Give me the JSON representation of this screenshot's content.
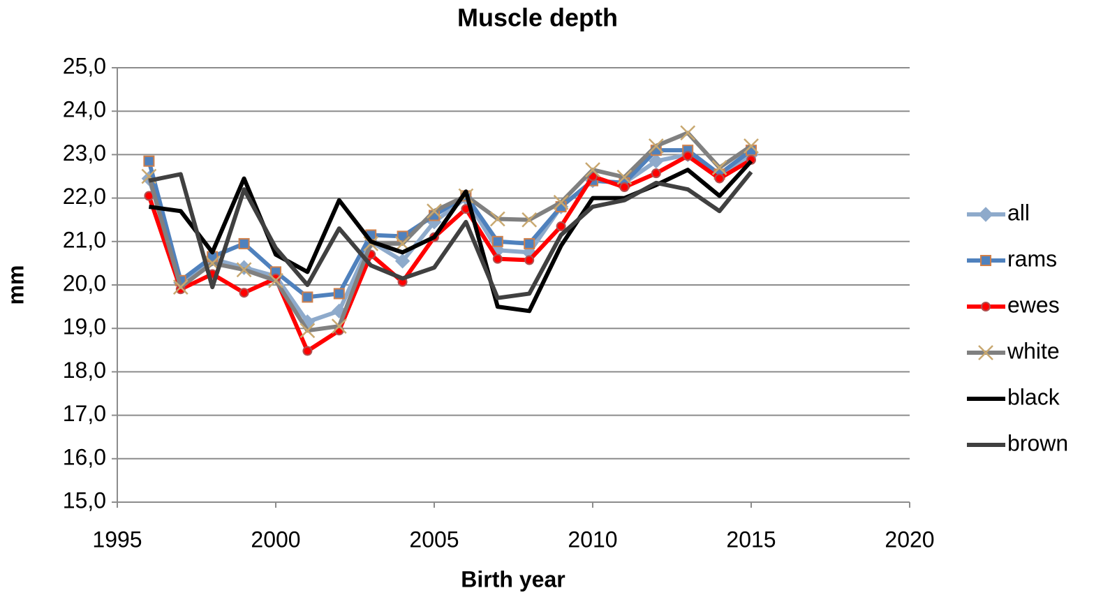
{
  "chart_data": {
    "type": "line",
    "title": "Muscle depth",
    "x_label": "Birth year",
    "y_label": "mm",
    "x": [
      1996,
      1997,
      1998,
      1999,
      2000,
      2001,
      2002,
      2003,
      2004,
      2005,
      2006,
      2007,
      2008,
      2009,
      2010,
      2011,
      2012,
      2013,
      2014,
      2015
    ],
    "series": [
      {
        "name": "all",
        "color": "#8eaacb",
        "marker": "diamond",
        "values": [
          22.45,
          20.05,
          20.6,
          20.4,
          20.2,
          19.15,
          19.4,
          21.0,
          20.55,
          21.45,
          22.0,
          20.8,
          20.75,
          21.8,
          22.4,
          22.35,
          22.85,
          23.0,
          22.55,
          23.0
        ]
      },
      {
        "name": "rams",
        "color": "#4f81bd",
        "marker": "square",
        "marker_edge": "#d0804a",
        "values": [
          22.85,
          20.1,
          20.65,
          20.95,
          20.3,
          19.72,
          19.8,
          21.15,
          21.12,
          21.6,
          22.05,
          21.0,
          20.95,
          21.8,
          22.4,
          22.35,
          23.1,
          23.1,
          22.55,
          23.1
        ]
      },
      {
        "name": "ewes",
        "color": "#ff0000",
        "marker": "circle",
        "marker_edge": "#b05050",
        "values": [
          22.05,
          19.9,
          20.25,
          19.82,
          20.15,
          18.48,
          18.95,
          20.7,
          20.07,
          21.1,
          21.75,
          20.6,
          20.57,
          21.35,
          22.5,
          22.25,
          22.57,
          22.97,
          22.45,
          22.88
        ]
      },
      {
        "name": "white",
        "color": "#808080",
        "marker": "x",
        "marker_edge": "#c8a870",
        "values": [
          22.5,
          19.95,
          20.5,
          20.35,
          20.1,
          18.95,
          19.05,
          20.95,
          20.95,
          21.7,
          22.05,
          21.52,
          21.5,
          21.9,
          22.65,
          22.48,
          23.2,
          23.5,
          22.7,
          23.2
        ]
      },
      {
        "name": "black",
        "color": "#000000",
        "marker": "none",
        "values": [
          21.8,
          21.7,
          20.75,
          22.45,
          20.7,
          20.3,
          21.95,
          21.0,
          20.75,
          21.1,
          22.15,
          19.5,
          19.4,
          20.9,
          22.0,
          22.0,
          22.3,
          22.65,
          22.05,
          22.85
        ]
      },
      {
        "name": "brown",
        "color": "#404040",
        "marker": "none",
        "values": [
          22.4,
          22.55,
          19.95,
          22.2,
          20.85,
          20.0,
          21.3,
          20.45,
          20.15,
          20.4,
          21.45,
          19.7,
          19.8,
          21.15,
          21.8,
          21.95,
          22.35,
          22.2,
          21.7,
          22.6
        ]
      }
    ],
    "xlim": [
      1995,
      2020
    ],
    "xticks": [
      1995,
      2000,
      2005,
      2010,
      2015,
      2020
    ],
    "ylim": [
      15,
      25
    ],
    "yticks": [
      {
        "value": 15,
        "label": "15,0"
      },
      {
        "value": 16,
        "label": "16,0"
      },
      {
        "value": 17,
        "label": "17,0"
      },
      {
        "value": 18,
        "label": "18,0"
      },
      {
        "value": 19,
        "label": "19,0"
      },
      {
        "value": 20,
        "label": "20,0"
      },
      {
        "value": 21,
        "label": "21,0"
      },
      {
        "value": 22,
        "label": "22,0"
      },
      {
        "value": 23,
        "label": "23,0"
      },
      {
        "value": 24,
        "label": "24,0"
      },
      {
        "value": 25,
        "label": "25,0"
      }
    ],
    "grid": true,
    "legend": "right"
  }
}
